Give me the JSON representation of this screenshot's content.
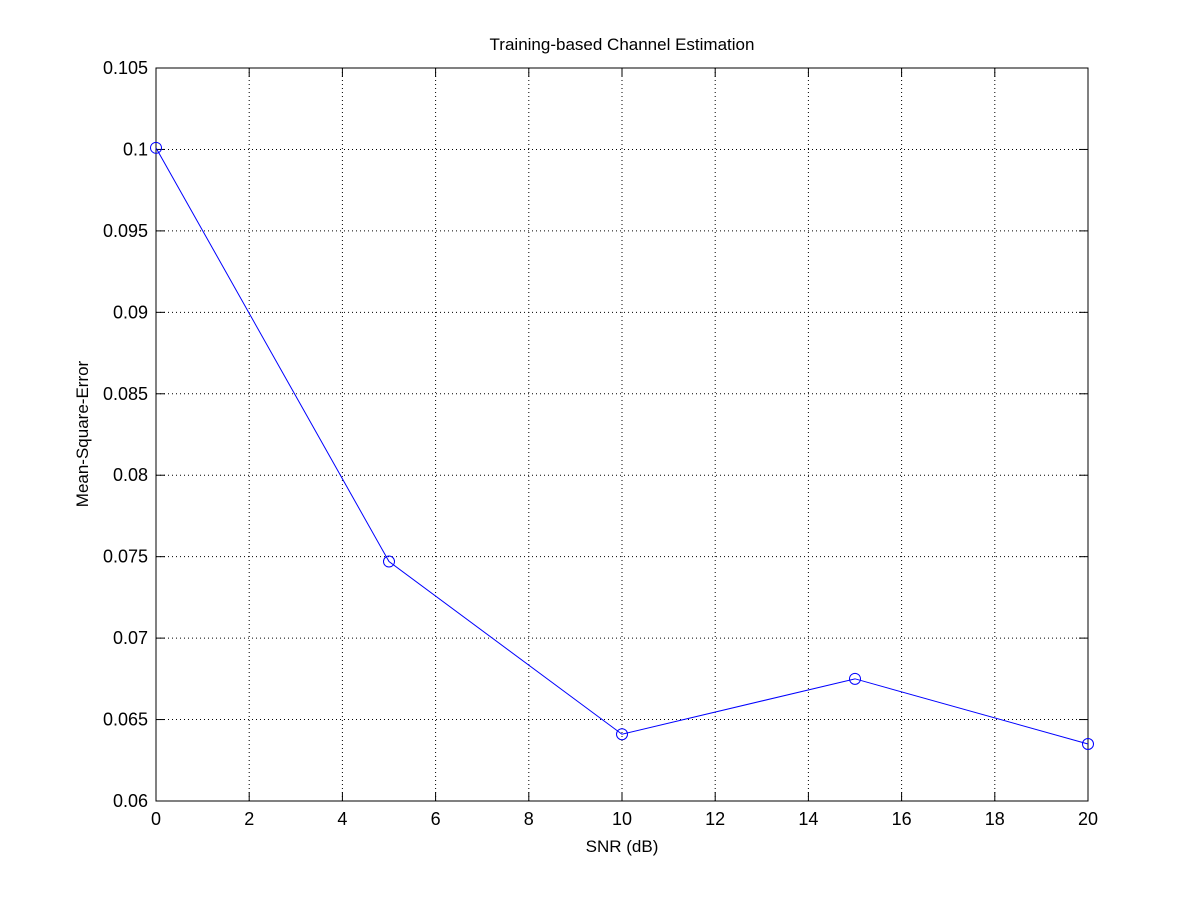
{
  "chart_data": {
    "type": "line",
    "title": "Training-based Channel Estimation",
    "xlabel": "SNR (dB)",
    "ylabel": "Mean-Square-Error",
    "xlim": [
      0,
      20
    ],
    "ylim": [
      0.06,
      0.105
    ],
    "x_ticks": [
      "0",
      "2",
      "4",
      "6",
      "8",
      "10",
      "12",
      "14",
      "16",
      "18",
      "20"
    ],
    "y_ticks": [
      "0.06",
      "0.065",
      "0.07",
      "0.075",
      "0.08",
      "0.085",
      "0.09",
      "0.095",
      "0.1",
      "0.105"
    ],
    "grid": true,
    "grid_style": "dotted",
    "marker": "circle",
    "line_color": "#0000ff",
    "series": [
      {
        "x": [
          0,
          5,
          10,
          15,
          20
        ],
        "values": [
          0.1001,
          0.0747,
          0.0641,
          0.0675,
          0.0635
        ]
      }
    ]
  }
}
